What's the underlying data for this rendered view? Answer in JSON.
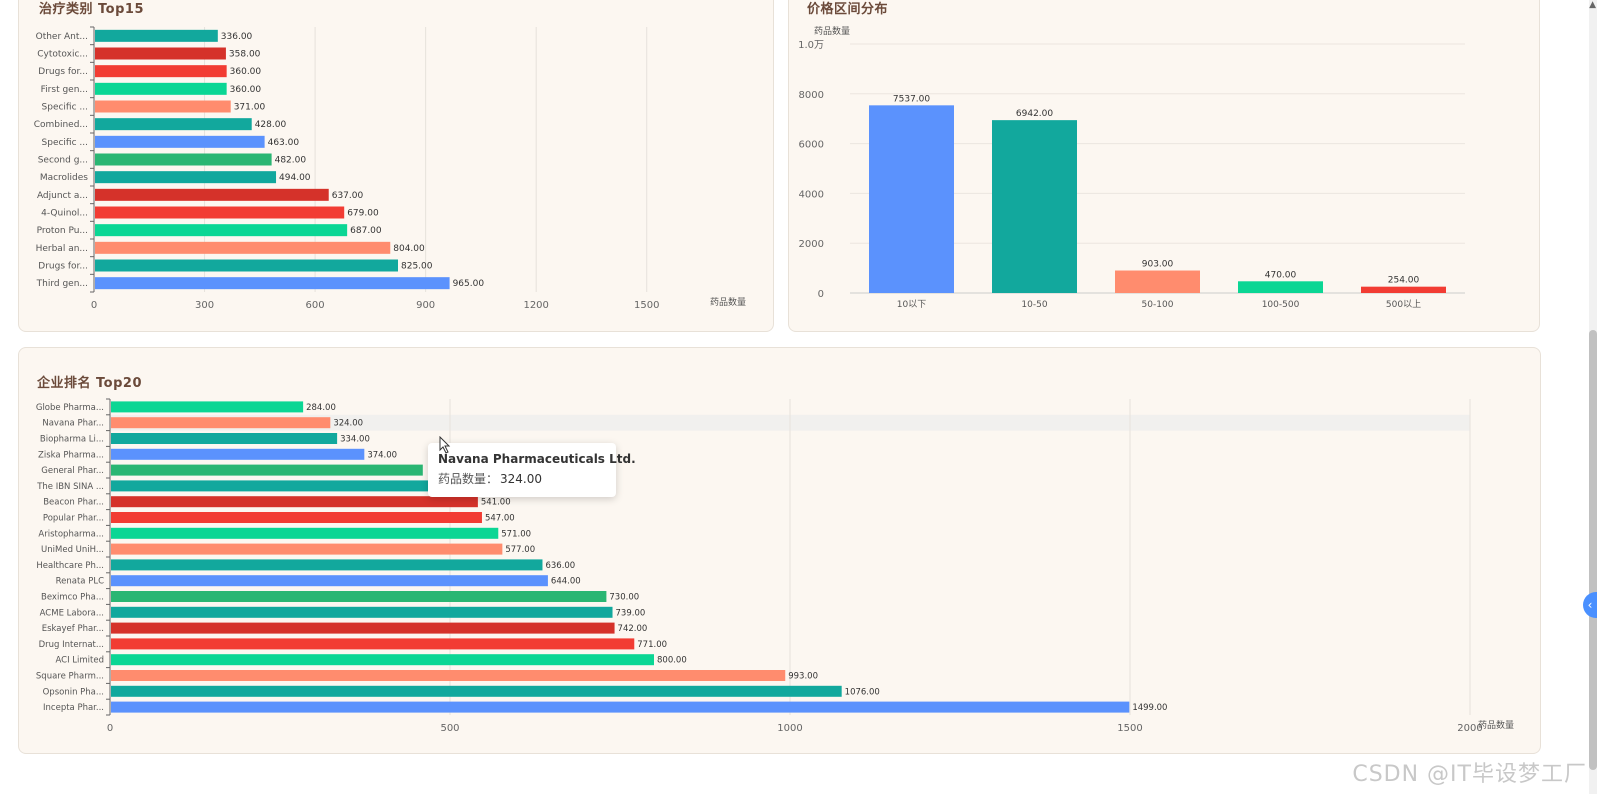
{
  "therapeutic": {
    "title": "治疗类别 Top15",
    "chart_data": {
      "type": "bar",
      "orientation": "horizontal",
      "categories": [
        "Other Ant...",
        "Cytotoxic...",
        "Drugs for...",
        "First gen...",
        "Specific ...",
        "Combined...",
        "Specific ...",
        "Second g...",
        "Macrolides",
        "Adjunct a...",
        "4-Quinol...",
        "Proton Pu...",
        "Herbal an...",
        "Drugs for...",
        "Third gen..."
      ],
      "values": [
        336,
        358,
        360,
        360,
        371,
        428,
        463,
        482,
        494,
        637,
        679,
        687,
        804,
        825,
        965
      ],
      "labels": [
        "336.00",
        "358.00",
        "360.00",
        "360.00",
        "371.00",
        "428.00",
        "463.00",
        "482.00",
        "494.00",
        "637.00",
        "679.00",
        "687.00",
        "804.00",
        "825.00",
        "965.00"
      ],
      "colors": [
        "#12a89d",
        "#d5322a",
        "#f23c33",
        "#0bd694",
        "#ff8c6e",
        "#12a89d",
        "#5b92fd",
        "#2ab673",
        "#12a89d",
        "#d5322a",
        "#f23c33",
        "#0bd694",
        "#ff8c6e",
        "#12a89d",
        "#5b92fd"
      ],
      "xlim": [
        0,
        1650
      ],
      "xticks": [
        "0",
        "300",
        "600",
        "900",
        "1200",
        "1500"
      ],
      "xlabel": "药品数量",
      "grid": true
    }
  },
  "price": {
    "title": "价格区间分布",
    "chart_data": {
      "type": "bar",
      "orientation": "vertical",
      "categories": [
        "10以下",
        "10-50",
        "50-100",
        "100-500",
        "500以上"
      ],
      "values": [
        7537,
        6942,
        903,
        470,
        254
      ],
      "labels": [
        "7537.00",
        "6942.00",
        "903.00",
        "470.00",
        "254.00"
      ],
      "colors": [
        "#5b92fd",
        "#12a89d",
        "#ff8c6e",
        "#0bd694",
        "#f23c33"
      ],
      "ylim": [
        0,
        10000
      ],
      "yticks": [
        "0",
        "2000",
        "4000",
        "6000",
        "8000",
        "1.0万"
      ],
      "ylabel": "药品数量",
      "grid": true
    }
  },
  "company": {
    "title": "企业排名 Top20",
    "chart_data": {
      "type": "bar",
      "orientation": "horizontal",
      "categories": [
        "Globe Pharma...",
        "Navana Phar...",
        "Biopharma Li...",
        "Ziska Pharma...",
        "General Phar...",
        "The IBN SINA ...",
        "Beacon Phar...",
        "Popular Phar...",
        "Aristopharma...",
        "UniMed UniH...",
        "Healthcare Ph...",
        "Renata PLC",
        "Beximco Pha...",
        "ACME Labora...",
        "Eskayef Phar...",
        "Drug Internat...",
        "ACI Limited",
        "Square Pharm...",
        "Opsonin Pha...",
        "Incepta Phar..."
      ],
      "values": [
        284,
        324,
        334,
        374,
        460,
        497,
        541,
        547,
        571,
        577,
        636,
        644,
        730,
        739,
        742,
        771,
        800,
        993,
        1076,
        1499
      ],
      "labels": [
        "284.00",
        "324.00",
        "334.00",
        "374.00",
        "",
        "497.00",
        "541.00",
        "547.00",
        "571.00",
        "577.00",
        "636.00",
        "644.00",
        "730.00",
        "739.00",
        "742.00",
        "771.00",
        "800.00",
        "993.00",
        "1076.00",
        "1499.00"
      ],
      "colors": [
        "#0bd694",
        "#ff8c6e",
        "#12a89d",
        "#5b92fd",
        "#2ab673",
        "#12a89d",
        "#d5322a",
        "#f23c33",
        "#0bd694",
        "#ff8c6e",
        "#12a89d",
        "#5b92fd",
        "#2ab673",
        "#12a89d",
        "#d5322a",
        "#f23c33",
        "#0bd694",
        "#ff8c6e",
        "#12a89d",
        "#5b92fd"
      ],
      "xlim": [
        0,
        2000
      ],
      "xticks": [
        "0",
        "500",
        "1000",
        "1500",
        "2000"
      ],
      "xlabel": "药品数量",
      "grid": true,
      "highlight_index": 1
    }
  },
  "tooltip": {
    "title": "Navana Pharmaceuticals Ltd.",
    "label": "药品数量：",
    "value": "324.00"
  },
  "watermark": "CSDN @IT毕设梦工厂"
}
